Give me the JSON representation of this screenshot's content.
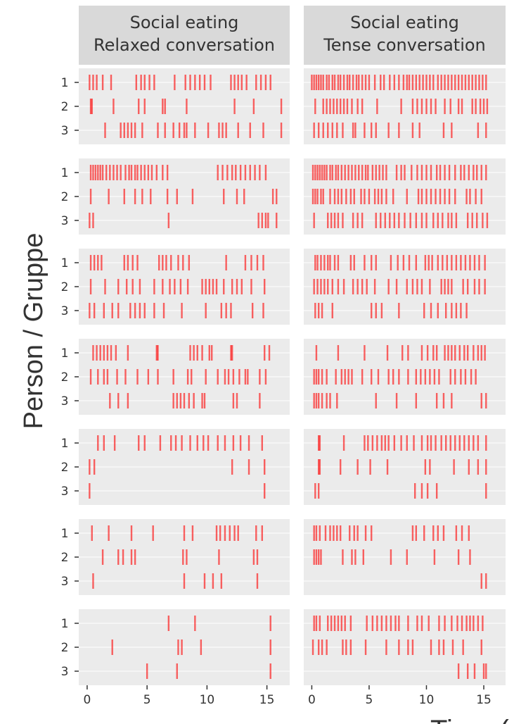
{
  "chart_data": {
    "type": "event",
    "y_label": "Person / Gruppe",
    "x_label": "Time (",
    "color": "#ff0000",
    "xlim": [
      -0.7,
      16.9
    ],
    "xticks": [
      0,
      5,
      10,
      15
    ],
    "yticks": [
      1,
      2,
      3
    ],
    "grid": true,
    "facets": [
      {
        "strip": [
          "Social eating",
          "Relaxed conversation"
        ],
        "groups": [
          [
            [
              0.2,
              0.5,
              0.8,
              1.3,
              2.0,
              4.1,
              4.5,
              4.8,
              5.2,
              5.6,
              7.3,
              8.2,
              8.6,
              9.0,
              9.4,
              9.8,
              10.3,
              12.0,
              12.3,
              12.6,
              12.9,
              13.3,
              14.1,
              14.5,
              14.9,
              15.3
            ],
            [
              0.3,
              0.4,
              2.2,
              4.3,
              4.8,
              6.3,
              6.5,
              8.3,
              12.3,
              13.9,
              16.2
            ],
            [
              1.5,
              2.8,
              3.1,
              3.4,
              3.7,
              4.0,
              4.6,
              5.9,
              6.5,
              7.2,
              7.7,
              8.1,
              8.3,
              9.0,
              10.1,
              11.0,
              11.3,
              11.6,
              12.6,
              13.6,
              14.7,
              16.2
            ]
          ],
          [
            [
              0.3,
              0.5,
              0.7,
              0.9,
              1.1,
              1.3,
              1.6,
              1.9,
              2.2,
              2.5,
              2.8,
              3.2,
              3.5,
              3.7,
              4.0,
              4.2,
              4.5,
              4.8,
              5.1,
              5.4,
              5.8,
              6.3,
              6.7,
              10.9,
              11.3,
              11.7,
              12.1,
              12.4,
              12.8,
              13.2,
              13.6,
              14.0,
              14.4,
              14.9
            ],
            [
              0.3,
              1.8,
              3.1,
              4.0,
              4.6,
              5.3,
              6.7,
              7.5,
              8.8,
              11.4,
              12.5,
              13.1,
              15.5,
              15.8
            ],
            [
              0.2,
              0.5,
              6.8,
              14.3,
              14.6,
              14.9,
              15.1,
              15.8
            ]
          ],
          [
            [
              0.3,
              0.6,
              0.9,
              1.2,
              3.1,
              3.4,
              3.8,
              4.2,
              6.0,
              6.3,
              6.6,
              7.0,
              7.6,
              8.0,
              8.5,
              11.6,
              13.2,
              13.7,
              14.2,
              14.7
            ],
            [
              0.3,
              1.5,
              2.6,
              3.3,
              3.8,
              4.4,
              5.6,
              6.3,
              6.9,
              7.3,
              7.8,
              8.4,
              9.6,
              9.9,
              10.2,
              10.5,
              10.8,
              11.4,
              12.1,
              12.5,
              12.9,
              13.7,
              14.8
            ],
            [
              0.2,
              0.6,
              1.4,
              2.1,
              2.6,
              3.6,
              4.0,
              4.4,
              4.8,
              5.6,
              6.4,
              7.9,
              9.9,
              11.2,
              11.6,
              12.0,
              13.8,
              14.7
            ]
          ],
          [
            [
              0.5,
              0.8,
              1.1,
              1.4,
              1.7,
              2.0,
              2.4,
              3.4,
              5.8,
              5.9,
              8.6,
              8.9,
              9.2,
              9.6,
              10.2,
              10.4,
              12.0,
              12.1,
              14.8,
              15.2
            ],
            [
              0.3,
              0.9,
              1.4,
              1.7,
              2.5,
              3.2,
              4.2,
              5.1,
              5.9,
              7.2,
              8.4,
              8.7,
              9.9,
              10.9,
              11.5,
              11.8,
              12.2,
              12.7,
              13.2,
              13.4,
              14.4,
              14.9
            ],
            [
              1.9,
              2.6,
              3.4,
              7.2,
              7.5,
              7.8,
              8.1,
              8.5,
              8.9,
              9.6,
              9.8,
              12.2,
              12.5,
              14.4
            ]
          ],
          [
            [
              0.9,
              1.4,
              2.3,
              4.3,
              4.8,
              6.1,
              7.0,
              7.4,
              7.9,
              8.6,
              9.2,
              9.7,
              10.1,
              10.9,
              11.5,
              12.2,
              12.8,
              13.5,
              14.6
            ],
            [
              0.2,
              0.6,
              12.1,
              13.5,
              14.8
            ],
            [
              0.2,
              14.8
            ]
          ],
          [
            [
              0.4,
              1.8,
              3.7,
              5.5,
              8.1,
              8.8,
              10.8,
              11.1,
              11.5,
              11.9,
              12.3,
              12.6,
              14.1,
              14.6
            ],
            [
              1.3,
              2.6,
              3.0,
              3.7,
              4.0,
              8.0,
              8.3,
              11.0,
              13.9,
              14.2
            ],
            [
              0.5,
              8.1,
              9.8,
              10.5,
              11.2,
              14.2
            ]
          ],
          [
            [
              6.8,
              9.0,
              15.3
            ],
            [
              2.1,
              7.6,
              7.9,
              9.5,
              15.3
            ],
            [
              5.0,
              7.5,
              15.3
            ]
          ]
        ]
      },
      {
        "strip": [
          "Social eating",
          "Tense conversation"
        ],
        "groups": [
          [
            [
              0.0,
              0.2,
              0.4,
              0.6,
              0.8,
              1.0,
              1.3,
              1.5,
              1.8,
              2.0,
              2.3,
              2.5,
              2.8,
              3.1,
              3.3,
              3.6,
              3.9,
              4.1,
              4.4,
              4.7,
              5.0,
              5.5,
              6.0,
              6.3,
              6.8,
              7.2,
              7.6,
              8.0,
              8.3,
              8.5,
              8.8,
              9.1,
              9.4,
              9.7,
              10.0,
              10.3,
              10.6,
              11.0,
              11.3,
              11.6,
              11.9,
              12.2,
              12.5,
              12.8,
              13.1,
              13.4,
              13.7,
              14.0,
              14.3,
              14.6,
              14.9,
              15.2
            ],
            [
              0.3,
              1.0,
              1.3,
              1.6,
              1.9,
              2.2,
              2.5,
              2.8,
              3.1,
              3.5,
              4.0,
              4.4,
              5.7,
              7.8,
              8.8,
              9.2,
              9.6,
              10.0,
              10.4,
              10.8,
              11.6,
              12.1,
              12.8,
              13.1,
              14.0,
              14.3,
              14.7,
              15.0,
              15.3
            ],
            [
              0.2,
              0.6,
              1.0,
              1.4,
              1.8,
              2.2,
              2.7,
              3.6,
              3.8,
              4.6,
              5.2,
              5.6,
              6.7,
              7.6,
              8.8,
              9.4,
              11.5,
              12.2,
              14.5,
              15.2
            ]
          ],
          [
            [
              0.1,
              0.3,
              0.5,
              0.7,
              0.9,
              1.1,
              1.3,
              1.6,
              1.8,
              2.1,
              2.3,
              2.6,
              2.9,
              3.2,
              3.5,
              3.8,
              4.1,
              4.4,
              4.7,
              4.9,
              5.3,
              5.6,
              5.9,
              6.2,
              6.5,
              7.4,
              7.8,
              8.1,
              8.7,
              9.2,
              9.6,
              10.0,
              10.4,
              10.9,
              11.2,
              11.6,
              12.0,
              12.5,
              13.0,
              13.3,
              13.7,
              14.1,
              14.4,
              14.8,
              15.2
            ],
            [
              0.1,
              0.3,
              0.5,
              0.8,
              1.0,
              1.6,
              2.0,
              2.3,
              2.6,
              3.0,
              3.4,
              3.7,
              4.3,
              4.6,
              5.0,
              5.5,
              5.8,
              6.1,
              6.5,
              7.1,
              8.3,
              9.3,
              9.6,
              10.0,
              10.4,
              10.8,
              11.2,
              11.6,
              12.0,
              12.5,
              13.5,
              13.8,
              14.3,
              14.8
            ],
            [
              0.2,
              1.4,
              1.7,
              2.0,
              2.3,
              2.7,
              3.6,
              4.0,
              4.4,
              5.6,
              6.0,
              6.4,
              6.8,
              7.2,
              7.6,
              8.1,
              8.6,
              9.1,
              9.6,
              10.0,
              10.6,
              11.0,
              11.4,
              11.9,
              12.2,
              12.6,
              13.6,
              14.0,
              14.4,
              14.9,
              15.3
            ]
          ],
          [
            [
              0.3,
              0.5,
              0.8,
              1.1,
              1.4,
              1.6,
              2.0,
              2.3,
              3.4,
              3.7,
              4.6,
              5.2,
              5.6,
              6.9,
              7.5,
              8.0,
              8.5,
              9.1,
              9.9,
              10.2,
              10.5,
              11.0,
              11.4,
              11.8,
              12.2,
              12.6,
              13.0,
              13.4,
              13.8,
              14.2,
              14.6,
              15.1
            ],
            [
              0.2,
              0.5,
              0.8,
              1.1,
              1.4,
              1.8,
              2.3,
              2.8,
              3.6,
              4.0,
              4.4,
              4.8,
              5.5,
              6.7,
              7.4,
              8.3,
              8.8,
              9.2,
              9.6,
              10.3,
              11.3,
              11.6,
              11.9,
              12.2,
              13.2,
              13.6,
              14.2,
              14.6,
              15.1
            ],
            [
              0.3,
              0.6,
              0.9,
              1.8,
              5.2,
              5.6,
              6.1,
              7.6,
              9.8,
              10.4,
              11.0,
              11.7,
              12.2,
              12.6,
              13.0,
              13.5
            ]
          ],
          [
            [
              0.4,
              2.3,
              4.6,
              6.6,
              7.9,
              8.4,
              9.6,
              10.1,
              10.6,
              10.9,
              11.6,
              11.9,
              12.2,
              12.5,
              12.9,
              13.3,
              13.6,
              14.1,
              14.5,
              14.8,
              15.1
            ],
            [
              0.2,
              0.4,
              0.6,
              0.9,
              1.3,
              2.1,
              2.6,
              2.9,
              3.2,
              3.5,
              4.4,
              5.2,
              5.8,
              6.7,
              7.1,
              7.6,
              8.4,
              9.1,
              9.5,
              9.9,
              10.3,
              10.7,
              11.1,
              12.1,
              12.5,
              13.0,
              13.4,
              13.9,
              14.3
            ],
            [
              0.2,
              0.4,
              0.6,
              0.9,
              1.3,
              1.6,
              2.2,
              5.6,
              7.4,
              9.1,
              10.9,
              11.5,
              12.2,
              14.8,
              15.2
            ]
          ],
          [
            [
              0.6,
              0.7,
              2.8,
              4.6,
              4.9,
              5.3,
              5.7,
              6.1,
              6.4,
              6.7,
              7.2,
              7.8,
              8.3,
              8.9,
              9.6,
              10.1,
              10.4,
              10.8,
              11.3,
              11.7,
              12.1,
              12.5,
              12.9,
              13.3,
              13.7,
              14.1,
              14.5,
              15.2
            ],
            [
              0.6,
              0.7,
              2.5,
              4.0,
              5.1,
              6.6,
              9.9,
              10.3,
              12.4,
              13.7,
              14.5,
              15.2
            ],
            [
              0.3,
              0.6,
              9.0,
              9.6,
              10.1,
              10.9,
              15.2
            ]
          ],
          [
            [
              0.2,
              0.4,
              0.7,
              1.2,
              1.6,
              1.9,
              2.2,
              2.5,
              3.3,
              3.7,
              4.0,
              4.7,
              5.2,
              8.8,
              9.1,
              9.8,
              10.6,
              11.0,
              11.5,
              12.6,
              13.1,
              13.7
            ],
            [
              0.2,
              0.4,
              0.6,
              0.8,
              2.7,
              3.5,
              3.8,
              4.5,
              6.9,
              8.3,
              10.7,
              12.8,
              13.8
            ],
            [
              14.8,
              15.2
            ]
          ],
          [
            [
              0.2,
              0.4,
              0.7,
              1.4,
              1.7,
              2.0,
              2.3,
              2.6,
              2.9,
              3.4,
              4.8,
              5.3,
              5.7,
              6.1,
              6.5,
              6.9,
              7.3,
              7.6,
              8.4,
              9.2,
              9.6,
              10.2,
              11.1,
              11.6,
              12.2,
              12.7,
              13.1,
              13.5,
              13.8,
              14.1,
              14.5,
              14.9
            ],
            [
              0.1,
              0.6,
              0.9,
              1.3,
              2.7,
              3.0,
              3.4,
              4.7,
              6.5,
              7.6,
              8.4,
              8.8,
              10.4,
              11.1,
              11.5,
              12.3,
              13.2,
              14.8
            ],
            [
              12.8,
              13.6,
              14.2,
              15.0,
              15.2
            ]
          ]
        ]
      }
    ]
  }
}
